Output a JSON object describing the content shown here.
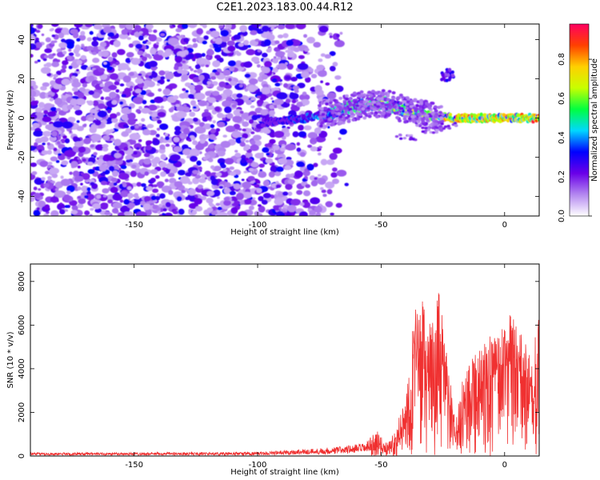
{
  "title": "C2E1.2023.183.00.44.R12",
  "chart_data": [
    {
      "type": "heatmap",
      "xlabel": "Height of straight line (km)",
      "ylabel": "Frequency (Hz)",
      "xlim": [
        -192,
        14
      ],
      "ylim": [
        -50,
        48
      ],
      "xticks": [
        -150,
        -100,
        -50,
        0
      ],
      "yticks": [
        -40,
        -20,
        0,
        20,
        40
      ],
      "colorbar": {
        "label": "Normalized spectral amplitude",
        "range": [
          0,
          0.98
        ],
        "ticks": [
          0.0,
          0.2,
          0.4,
          0.6,
          0.8
        ],
        "colors": [
          "#ffffff",
          "#b488f0",
          "#6a00e8",
          "#0000ff",
          "#00d8ff",
          "#00ff40",
          "#c8ff00",
          "#ffd000",
          "#ff4000",
          "#ff0060"
        ]
      },
      "ridge": {
        "description_points": [
          [
            -95,
            -2
          ],
          [
            -80,
            0
          ],
          [
            -70,
            3
          ],
          [
            -60,
            6
          ],
          [
            -50,
            8
          ],
          [
            -40,
            4
          ],
          [
            -30,
            1
          ],
          [
            -20,
            0
          ],
          [
            -10,
            0
          ],
          [
            0,
            0
          ],
          [
            10,
            0
          ]
        ],
        "side_blob": [
          -23,
          22
        ],
        "lower_tail": [
          [
            -40,
            -10
          ],
          [
            -30,
            -6
          ],
          [
            -22,
            -4
          ]
        ]
      }
    },
    {
      "type": "line",
      "xlabel": "Height of straight line (km)",
      "ylabel": "SNR (10 * v/v)",
      "xlim": [
        -192,
        14
      ],
      "ylim": [
        0,
        8800
      ],
      "xticks": [
        -150,
        -100,
        -50,
        0
      ],
      "yticks": [
        0,
        2000,
        4000,
        6000,
        8000
      ],
      "color": "#f03030",
      "envelope_x": [
        -192,
        -100,
        -70,
        -56,
        -52,
        -48,
        -44,
        -40,
        -37,
        -34,
        -30,
        -27,
        -24,
        -20,
        -17,
        -14,
        -10,
        -6,
        -2,
        2,
        6,
        10,
        14
      ],
      "envelope_y": [
        150,
        180,
        400,
        600,
        1200,
        600,
        1200,
        3000,
        6500,
        7500,
        6000,
        7800,
        5500,
        1500,
        3500,
        5500,
        5000,
        5400,
        5200,
        7000,
        5800,
        4800,
        6000
      ]
    }
  ]
}
